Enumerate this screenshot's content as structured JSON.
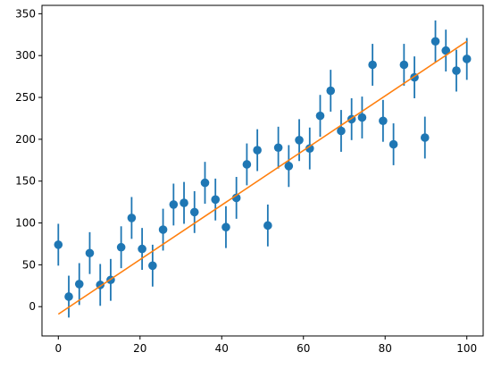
{
  "chart_data": {
    "type": "scatter",
    "title": "",
    "xlabel": "",
    "ylabel": "",
    "xlim": [
      -4,
      104
    ],
    "ylim": [
      -35,
      360
    ],
    "grid": false,
    "x_ticks": [
      0,
      20,
      40,
      60,
      80,
      100
    ],
    "y_ticks": [
      0,
      50,
      100,
      150,
      200,
      250,
      300,
      350
    ],
    "x_tick_labels": [
      "0",
      "20",
      "40",
      "60",
      "80",
      "100"
    ],
    "y_tick_labels": [
      "0",
      "50",
      "100",
      "150",
      "200",
      "250",
      "300",
      "350"
    ],
    "series": [
      {
        "kind": "errorbar",
        "color": "#1f77b4",
        "x": [
          0,
          2.56,
          5.13,
          7.69,
          10.26,
          12.82,
          15.38,
          17.95,
          20.51,
          23.08,
          25.64,
          28.21,
          30.77,
          33.33,
          35.9,
          38.46,
          41.03,
          43.59,
          46.15,
          48.72,
          51.28,
          53.85,
          56.41,
          58.97,
          61.54,
          64.1,
          66.67,
          69.23,
          71.79,
          74.36,
          76.92,
          79.49,
          82.05,
          84.62,
          87.18,
          89.74,
          92.31,
          94.87,
          97.44,
          100
        ],
        "y": [
          74,
          12,
          27,
          64,
          26,
          32,
          71,
          106,
          69,
          49,
          92,
          122,
          124,
          113,
          148,
          128,
          95,
          130,
          170,
          187,
          97,
          190,
          168,
          199,
          189,
          228,
          258,
          210,
          224,
          226,
          289,
          222,
          194,
          289,
          274,
          202,
          317,
          306,
          282,
          296
        ],
        "yerr": 25
      },
      {
        "kind": "line",
        "color": "#ff7f0e",
        "x": [
          0,
          100
        ],
        "y": [
          -9,
          317
        ]
      }
    ]
  }
}
